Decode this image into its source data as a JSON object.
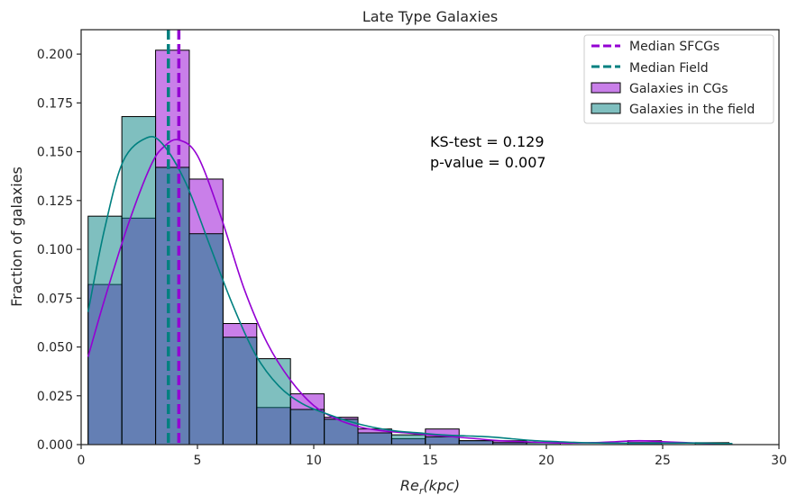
{
  "chart_data": {
    "type": "bar",
    "title": "Late Type Galaxies",
    "xlabel": "Re_r(kpc)",
    "xlabel_main": "Re",
    "xlabel_sub": "r",
    "xlabel_rest": "(kpc)",
    "ylabel": "Fraction of galaxies",
    "xlim": [
      0,
      30
    ],
    "ylim": [
      0,
      0.2125
    ],
    "xticks": [
      "0",
      "5",
      "10",
      "15",
      "20",
      "25",
      "30"
    ],
    "yticks": [
      "0.000",
      "0.025",
      "0.050",
      "0.075",
      "0.100",
      "0.125",
      "0.150",
      "0.175",
      "0.200"
    ],
    "bin_edges": [
      0.3,
      1.75,
      3.2,
      4.65,
      6.1,
      7.55,
      9.0,
      10.45,
      11.9,
      13.35,
      14.8,
      16.25,
      17.7,
      19.15,
      20.6,
      22.05,
      23.5,
      24.95,
      26.4,
      27.85
    ],
    "series": [
      {
        "name": "Galaxies in CGs",
        "color": "#9400d3",
        "values": [
          0.082,
          0.116,
          0.202,
          0.136,
          0.062,
          0.019,
          0.026,
          0.014,
          0.008,
          0.003,
          0.008,
          0.002,
          0.002,
          0.0,
          0.0,
          0.0,
          0.002,
          0.0,
          0.0
        ]
      },
      {
        "name": "Galaxies in the field",
        "color": "#008080",
        "values": [
          0.117,
          0.168,
          0.142,
          0.108,
          0.055,
          0.044,
          0.018,
          0.013,
          0.006,
          0.005,
          0.004,
          0.002,
          0.001,
          0.001,
          0.0,
          0.0,
          0.001,
          0.0,
          0.001
        ]
      }
    ],
    "kde": [
      {
        "name": "kde-cgs",
        "color": "#9400d3",
        "x": [
          0.3,
          1.0,
          2.0,
          3.0,
          3.6,
          4.2,
          5.0,
          6.0,
          7.0,
          8.0,
          9.0,
          10.0,
          11.0,
          12.0,
          13.0,
          14.0,
          15.0,
          16.0,
          17.0,
          18.0,
          19.0,
          20.0,
          21.0,
          22.0,
          23.0,
          24.0,
          25.0,
          26.0,
          27.0,
          28.0
        ],
        "y": [
          0.045,
          0.074,
          0.112,
          0.143,
          0.153,
          0.156,
          0.148,
          0.117,
          0.08,
          0.052,
          0.033,
          0.02,
          0.013,
          0.009,
          0.007,
          0.006,
          0.005,
          0.004,
          0.003,
          0.002,
          0.0015,
          0.001,
          0.0008,
          0.001,
          0.0015,
          0.002,
          0.0015,
          0.001,
          0.0006,
          0.0003
        ]
      },
      {
        "name": "kde-field",
        "color": "#008080",
        "x": [
          0.3,
          1.0,
          1.8,
          2.8,
          3.5,
          4.5,
          5.5,
          6.5,
          7.5,
          8.5,
          9.5,
          10.5,
          11.5,
          12.5,
          13.5,
          14.5,
          15.5,
          16.5,
          17.5,
          18.5,
          19.5,
          20.5,
          21.5,
          22.5,
          23.5,
          24.5,
          25.5,
          26.5,
          27.5,
          28.0
        ],
        "y": [
          0.068,
          0.11,
          0.145,
          0.157,
          0.154,
          0.134,
          0.103,
          0.072,
          0.046,
          0.03,
          0.021,
          0.016,
          0.012,
          0.009,
          0.007,
          0.006,
          0.005,
          0.0045,
          0.004,
          0.003,
          0.002,
          0.0015,
          0.001,
          0.0008,
          0.0007,
          0.0007,
          0.0008,
          0.0008,
          0.0006,
          0.0005
        ]
      }
    ],
    "medians": [
      {
        "name": "Median SFCGs",
        "x": 4.2,
        "color": "#9400d3"
      },
      {
        "name": "Median Field",
        "x": 3.75,
        "color": "#008080"
      }
    ],
    "annotations": [
      "KS-test = 0.129",
      "p-value = 0.007"
    ],
    "legend": {
      "placement": "top-right",
      "entries": [
        {
          "label": "Median SFCGs",
          "kind": "dashed-line",
          "color": "#9400d3"
        },
        {
          "label": "Median Field",
          "kind": "dashed-line",
          "color": "#008080"
        },
        {
          "label": "Galaxies in CGs",
          "kind": "patch",
          "color": "#9400d3"
        },
        {
          "label": "Galaxies in the field",
          "kind": "patch",
          "color": "#008080"
        }
      ]
    },
    "grid": false
  }
}
